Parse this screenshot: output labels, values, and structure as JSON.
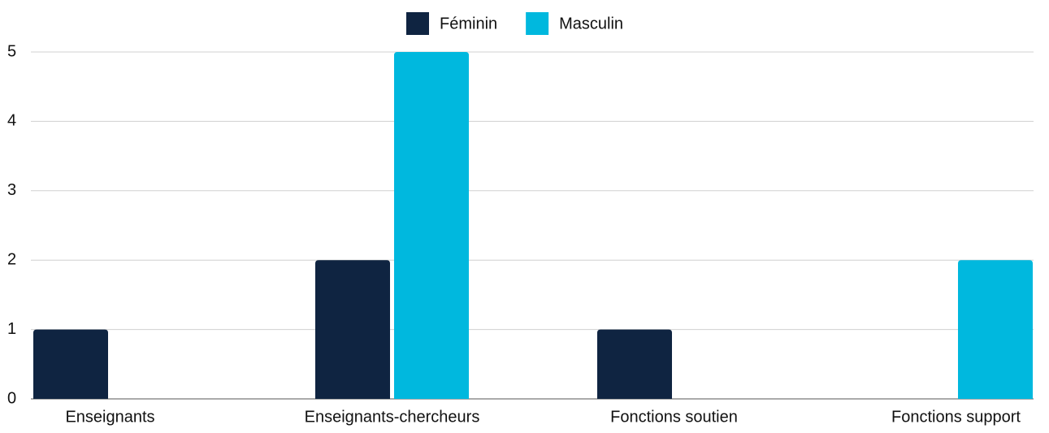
{
  "chart_data": {
    "type": "bar",
    "categories": [
      "Enseignants",
      "Enseignants-chercheurs",
      "Fonctions soutien",
      "Fonctions support"
    ],
    "series": [
      {
        "name": "Féminin",
        "color": "#0f2441",
        "values": [
          1,
          2,
          1,
          0
        ]
      },
      {
        "name": "Masculin",
        "color": "#00b8de",
        "values": [
          0,
          5,
          0,
          2
        ]
      }
    ],
    "ylim": [
      0,
      5
    ],
    "yticks": [
      0,
      1,
      2,
      3,
      4,
      5
    ],
    "grid": true,
    "legend": "top"
  }
}
